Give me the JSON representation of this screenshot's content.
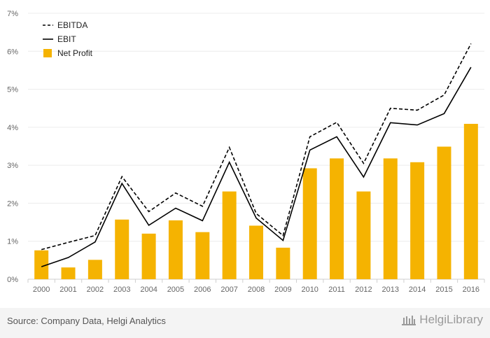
{
  "chart_data": {
    "type": "bar",
    "x": [
      "2000",
      "2001",
      "2002",
      "2003",
      "2004",
      "2005",
      "2006",
      "2007",
      "2008",
      "2009",
      "2010",
      "2011",
      "2012",
      "2013",
      "2014",
      "2015",
      "2016"
    ],
    "y_ticks": [
      "0%",
      "1%",
      "2%",
      "3%",
      "4%",
      "5%",
      "6%",
      "7%"
    ],
    "ylim": [
      0,
      7
    ],
    "grid": "horizontal",
    "legend_position": "top-left",
    "series": [
      {
        "name": "EBITDA",
        "type": "line",
        "style": "dashed",
        "color": "#000000",
        "values": [
          0.78,
          0.97,
          1.15,
          2.7,
          1.78,
          2.27,
          1.92,
          3.47,
          1.73,
          1.15,
          3.75,
          4.13,
          3.05,
          4.5,
          4.45,
          4.85,
          6.2
        ]
      },
      {
        "name": "EBIT",
        "type": "line",
        "style": "solid",
        "color": "#000000",
        "values": [
          0.33,
          0.57,
          0.98,
          2.52,
          1.42,
          1.87,
          1.54,
          3.08,
          1.61,
          1.02,
          3.4,
          3.75,
          2.69,
          4.12,
          4.06,
          4.36,
          5.58
        ]
      },
      {
        "name": "Net Profit",
        "type": "bar",
        "color": "#f5b301",
        "values": [
          0.76,
          0.31,
          0.51,
          1.57,
          1.2,
          1.55,
          1.24,
          2.31,
          1.41,
          0.83,
          2.92,
          3.18,
          2.31,
          3.18,
          3.08,
          3.49,
          4.09
        ]
      }
    ]
  },
  "footer": {
    "source": "Source: Company Data, Helgi Analytics",
    "logo_text": "HelgiLibrary"
  }
}
